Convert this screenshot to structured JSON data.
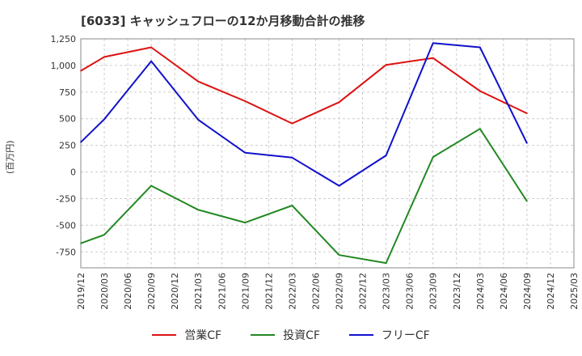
{
  "chart_data": {
    "type": "line",
    "title": "[6033]  キャッシュフローの12か月移動合計の推移",
    "ylabel": "(百万円)",
    "xlabel": "",
    "ylim": [
      -900,
      1250
    ],
    "yticks": [
      1250,
      1000,
      750,
      500,
      250,
      0,
      -250,
      -500,
      -750
    ],
    "ytick_labels": [
      "1,250",
      "1,000",
      "750",
      "500",
      "250",
      "0",
      "-250",
      "-500",
      "-750"
    ],
    "categories": [
      "2019/12",
      "2020/03",
      "2020/06",
      "2020/09",
      "2020/12",
      "2021/03",
      "2021/06",
      "2021/09",
      "2021/12",
      "2022/03",
      "2022/06",
      "2022/09",
      "2022/12",
      "2023/03",
      "2023/06",
      "2023/09",
      "2023/12",
      "2024/03",
      "2024/06",
      "2024/09",
      "2024/12",
      "2025/03"
    ],
    "grid": true,
    "legend_position": "bottom",
    "series": [
      {
        "name": "営業CF",
        "color": "#dd1111",
        "values": [
          950,
          1080,
          null,
          1170,
          null,
          850,
          null,
          665,
          null,
          455,
          null,
          655,
          null,
          1005,
          null,
          1070,
          null,
          760,
          null,
          550,
          null,
          null
        ]
      },
      {
        "name": "投資CF",
        "color": "#228822",
        "values": [
          -670,
          -590,
          null,
          -130,
          null,
          -355,
          null,
          -475,
          null,
          -315,
          null,
          -780,
          null,
          -855,
          null,
          140,
          null,
          405,
          null,
          -275,
          null,
          null
        ]
      },
      {
        "name": "フリーCF",
        "color": "#1111cc",
        "values": [
          280,
          495,
          null,
          1040,
          null,
          490,
          null,
          180,
          null,
          135,
          null,
          -130,
          null,
          155,
          null,
          1210,
          null,
          1170,
          null,
          270,
          null,
          null
        ]
      }
    ]
  }
}
